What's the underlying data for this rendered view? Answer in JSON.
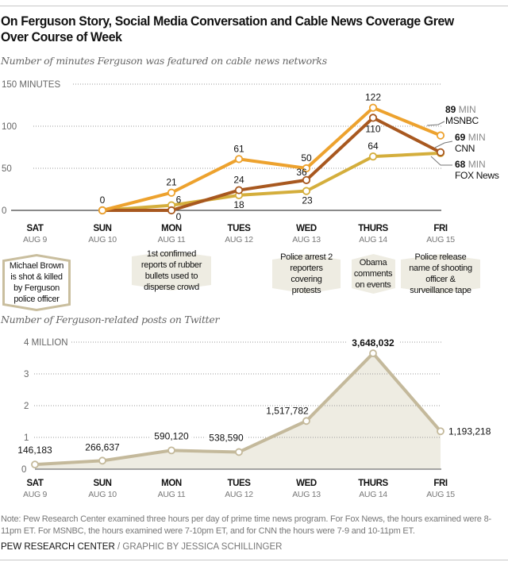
{
  "title": "On Ferguson Story, Social Media Conversation and Cable News Coverage Grew Over Course of Week",
  "colors": {
    "msnbc": "#EDA22E",
    "cnn": "#A8581F",
    "fox": "#D4AE3C",
    "twitter_line": "#C4B99B",
    "twitter_fill": "#EEECE2",
    "event_fill": "#EEECE2",
    "event_border": "#C9BE9E"
  },
  "days": [
    {
      "day": "SAT",
      "date": "AUG 9"
    },
    {
      "day": "SUN",
      "date": "AUG 10"
    },
    {
      "day": "MON",
      "date": "AUG 11"
    },
    {
      "day": "TUES",
      "date": "AUG 12"
    },
    {
      "day": "WED",
      "date": "AUG 13"
    },
    {
      "day": "THURS",
      "date": "AUG 14"
    },
    {
      "day": "FRI",
      "date": "AUG 15"
    }
  ],
  "events": [
    {
      "day_index": 0,
      "text": "Michael Brown is shot & killed by Ferguson police officer",
      "style": "outline"
    },
    {
      "day_index": 2,
      "text": "1st confirmed reports of rubber bullets used to disperse crowd",
      "style": "filled"
    },
    {
      "day_index": 4,
      "text": "Police arrest 2 reporters covering protests",
      "style": "filled"
    },
    {
      "day_index": 5,
      "text": "Obama comments on events",
      "style": "filled"
    },
    {
      "day_index": 6,
      "text": "Police release name of shooting officer & surveillance tape",
      "style": "filled"
    }
  ],
  "chart_data": [
    {
      "type": "line",
      "title": "Number of minutes Ferguson was featured on cable news networks",
      "xlabel": "",
      "ylabel": "Minutes",
      "ylim": [
        0,
        150
      ],
      "yticks": [
        {
          "value": 150,
          "label": "150 MINUTES"
        },
        {
          "value": 100,
          "label": "100"
        },
        {
          "value": 50,
          "label": "50"
        },
        {
          "value": 0,
          "label": "0"
        }
      ],
      "grid": true,
      "categories": [
        "SAT AUG 9",
        "SUN AUG 10",
        "MON AUG 11",
        "TUES AUG 12",
        "WED AUG 13",
        "THURS AUG 14",
        "FRI AUG 15"
      ],
      "series": [
        {
          "name": "MSNBC",
          "key": "msnbc",
          "values": [
            null,
            0,
            21,
            61,
            50,
            122,
            89
          ],
          "end_label_value": "89",
          "end_label_unit": "MIN"
        },
        {
          "name": "CNN",
          "key": "cnn",
          "values": [
            null,
            0,
            0,
            24,
            36,
            110,
            69
          ],
          "end_label_value": "69",
          "end_label_unit": "MIN"
        },
        {
          "name": "FOX News",
          "key": "fox",
          "values": [
            null,
            0,
            6,
            18,
            23,
            64,
            68
          ],
          "end_label_value": "68",
          "end_label_unit": "MIN"
        }
      ],
      "data_labels": [
        {
          "series": "MSNBC",
          "day_index": 1,
          "text": "0"
        },
        {
          "series": "MSNBC",
          "day_index": 2,
          "text": "21"
        },
        {
          "series": "MSNBC",
          "day_index": 3,
          "text": "61"
        },
        {
          "series": "MSNBC",
          "day_index": 4,
          "text": "50"
        },
        {
          "series": "MSNBC",
          "day_index": 5,
          "text": "122"
        },
        {
          "series": "FOX News",
          "day_index": 2,
          "text": "6"
        },
        {
          "series": "CNN",
          "day_index": 2,
          "text": "0"
        },
        {
          "series": "CNN",
          "day_index": 3,
          "text": "24"
        },
        {
          "series": "FOX News",
          "day_index": 3,
          "text": "18"
        },
        {
          "series": "CNN",
          "day_index": 4,
          "text": "36"
        },
        {
          "series": "FOX News",
          "day_index": 4,
          "text": "23"
        },
        {
          "series": "CNN",
          "day_index": 5,
          "text": "110"
        },
        {
          "series": "FOX News",
          "day_index": 5,
          "text": "64"
        }
      ]
    },
    {
      "type": "area",
      "title": "Number of Ferguson-related posts on Twitter",
      "xlabel": "",
      "ylabel": "Posts",
      "ylim": [
        0,
        4000000
      ],
      "yticks": [
        {
          "value": 4000000,
          "label": "4 MILLION"
        },
        {
          "value": 3000000,
          "label": "3"
        },
        {
          "value": 2000000,
          "label": "2"
        },
        {
          "value": 1000000,
          "label": "1"
        },
        {
          "value": 0,
          "label": "0"
        }
      ],
      "grid": true,
      "categories": [
        "SAT AUG 9",
        "SUN AUG 10",
        "MON AUG 11",
        "TUES AUG 12",
        "WED AUG 13",
        "THURS AUG 14",
        "FRI AUG 15"
      ],
      "series": [
        {
          "name": "Twitter posts",
          "values": [
            146183,
            266637,
            590120,
            538590,
            1517782,
            3648032,
            1193218
          ]
        }
      ],
      "data_labels": [
        "146,183",
        "266,637",
        "590,120",
        "538,590",
        "1,517,782",
        "3,648,032",
        "1,193,218"
      ]
    }
  ],
  "note": "Note: Pew Research Center examined three hours per day of prime time news program. For Fox News, the hours examined were 8-11pm ET. For MSNBC, the hours examined were 7-10pm ET, and for CNN the hours were 7-9 and 10-11pm ET.",
  "credit": {
    "org": "PEW RESEARCH CENTER",
    "separator": " / ",
    "byline": "GRAPHIC BY JESSICA SCHILLINGER"
  }
}
